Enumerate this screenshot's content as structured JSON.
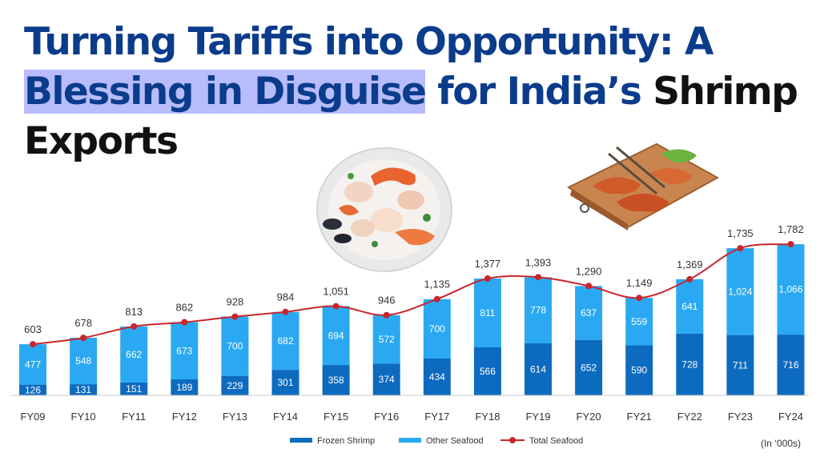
{
  "title": {
    "part1": "Turning Tariffs into Opportunity: A ",
    "highlight": "Blessing in Disguise",
    "part2": " for India’s ",
    "dark": "Shrimp Exports"
  },
  "images": {
    "plate": "seafood-platter-image",
    "board": "grilled-shrimp-board-image"
  },
  "unit_note": "(In ‘000s)",
  "colors": {
    "title": "#0b3c8c",
    "highlight": "#b8bcfb",
    "frozen": "#0d6bbf",
    "other": "#2aa9f2",
    "total": "#c8262b"
  },
  "chart_data": {
    "type": "bar",
    "stacked": true,
    "categories": [
      "FY09",
      "FY10",
      "FY11",
      "FY12",
      "FY13",
      "FY14",
      "FY15",
      "FY16",
      "FY17",
      "FY18",
      "FY19",
      "FY20",
      "FY21",
      "FY22",
      "FY23",
      "FY24"
    ],
    "series": [
      {
        "name": "Frozen Shrimp",
        "type": "bar",
        "color": "#0d6bbf",
        "values": [
          126,
          131,
          151,
          189,
          229,
          301,
          358,
          374,
          434,
          566,
          614,
          652,
          590,
          728,
          711,
          716
        ]
      },
      {
        "name": "Other Seafood",
        "type": "bar",
        "color": "#2aa9f2",
        "values": [
          477,
          548,
          662,
          673,
          700,
          682,
          694,
          572,
          700,
          811,
          778,
          637,
          559,
          641,
          1024,
          1066
        ]
      },
      {
        "name": "Total Seafood",
        "type": "line",
        "color": "#c8262b",
        "values": [
          603,
          678,
          813,
          862,
          928,
          984,
          1051,
          946,
          1135,
          1377,
          1393,
          1290,
          1149,
          1369,
          1735,
          1782
        ]
      }
    ],
    "total_labels": [
      "603",
      "678",
      "813",
      "862",
      "928",
      "984",
      "1,051",
      "946",
      "1,135",
      "1,377",
      "1,393",
      "1,290",
      "1,149",
      "1,369",
      "1,735",
      "1,782"
    ],
    "other_labels": [
      "477",
      "548",
      "662",
      "673",
      "700",
      "682",
      "694",
      "572",
      "700",
      "811",
      "778",
      "637",
      "559",
      "641",
      "1,024",
      "1,066"
    ],
    "ylim": [
      0,
      1800
    ],
    "xlabel": "",
    "ylabel": "",
    "grid": false,
    "legend": "bottom"
  }
}
